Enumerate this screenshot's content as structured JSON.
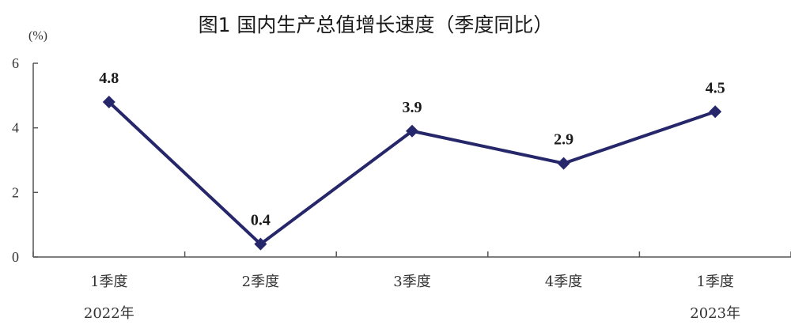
{
  "chart_data": {
    "type": "line",
    "title": "图1   国内生产总值增长速度（季度同比）",
    "ylabel": "(%)",
    "xlabel": "",
    "ylim": [
      0,
      6
    ],
    "yticks": [
      "0",
      "2",
      "4",
      "6"
    ],
    "grid": false,
    "categories": [
      "1季度",
      "2季度",
      "3季度",
      "4季度",
      "1季度"
    ],
    "year_labels": [
      "2022年",
      "",
      "",
      "",
      "2023年"
    ],
    "series": [
      {
        "values": [
          4.8,
          0.4,
          3.9,
          2.9,
          4.5
        ],
        "labels": [
          "4.8",
          "0.4",
          "3.9",
          "2.9",
          "4.5"
        ],
        "color": "#26276b"
      }
    ]
  }
}
